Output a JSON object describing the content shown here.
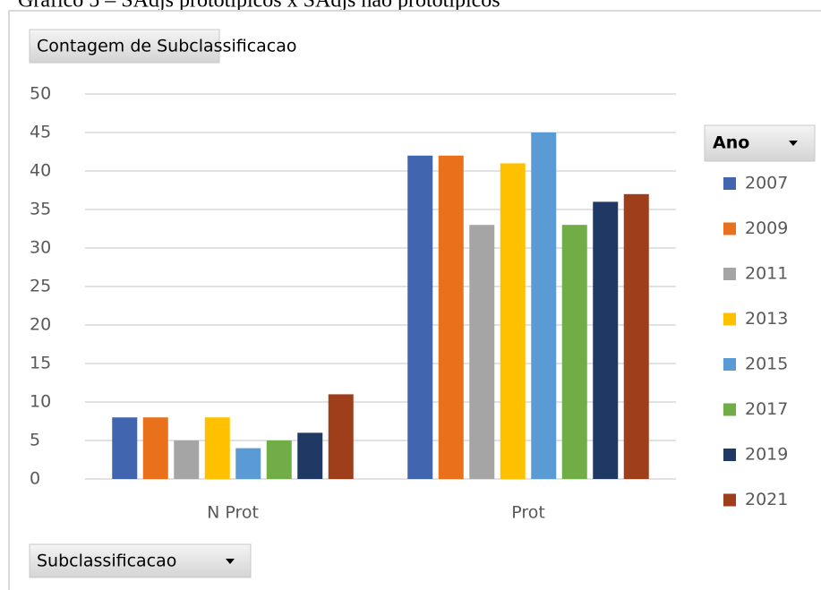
{
  "chart_data": {
    "type": "bar",
    "title": "Gráfico 5 – SAdjs prototípicos x SAdjs não prototípicos",
    "value_field": "Contagem de Subclassificacao",
    "legend_title": "Ano",
    "x_field": "Subclassificacao",
    "categories": [
      "N Prot",
      "Prot"
    ],
    "series": [
      {
        "name": "2007",
        "color": "#4165af",
        "values": [
          8,
          42
        ]
      },
      {
        "name": "2009",
        "color": "#e9711c",
        "values": [
          8,
          42
        ]
      },
      {
        "name": "2011",
        "color": "#a5a5a5",
        "values": [
          5,
          33
        ]
      },
      {
        "name": "2013",
        "color": "#ffc000",
        "values": [
          8,
          41
        ]
      },
      {
        "name": "2015",
        "color": "#5b9bd5",
        "values": [
          4,
          45
        ]
      },
      {
        "name": "2017",
        "color": "#70ad47",
        "values": [
          5,
          33
        ]
      },
      {
        "name": "2019",
        "color": "#203864",
        "values": [
          6,
          36
        ]
      },
      {
        "name": "2021",
        "color": "#9e3e1a",
        "values": [
          11,
          37
        ]
      }
    ],
    "ylim": [
      0,
      50
    ],
    "yticks": [
      0,
      5,
      10,
      15,
      20,
      25,
      30,
      35,
      40,
      45,
      50
    ],
    "grid": true,
    "legend": "right"
  }
}
